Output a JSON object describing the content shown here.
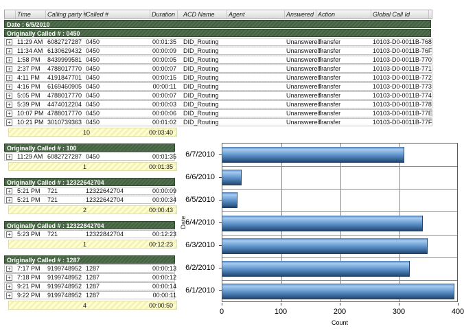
{
  "table": {
    "columns": [
      "",
      "Time",
      "Calling party #",
      "Called #",
      "Duration",
      "ACD Name",
      "Agent",
      "Answered",
      "Action",
      "Global Call Id"
    ],
    "date_header": "Date : 6/5/2010",
    "groups": [
      {
        "header": "Originally Called # : 0450",
        "full_width": true,
        "rows": [
          {
            "time": "11:29 AM",
            "calling": "6082727287",
            "called": "0450",
            "duration": "00:01:35",
            "acd": "DID_Routing",
            "agent": "",
            "answered": "Unanswered",
            "action": "Transfer",
            "global_id": "10103-D0-0011B-768"
          },
          {
            "time": "11:34 AM",
            "calling": "6130629432",
            "called": "0450",
            "duration": "00:00:09",
            "acd": "DID_Routing",
            "agent": "",
            "answered": "Unanswered",
            "action": "Transfer",
            "global_id": "10103-D0-0011B-76F"
          },
          {
            "time": "1:58 PM",
            "calling": "8439999581",
            "called": "0450",
            "duration": "00:00:05",
            "acd": "DID_Routing",
            "agent": "",
            "answered": "Unanswered",
            "action": "Transfer",
            "global_id": "10103-D0-0011B-770"
          },
          {
            "time": "2:37 PM",
            "calling": "4788017770",
            "called": "0450",
            "duration": "00:00:07",
            "acd": "DID_Routing",
            "agent": "",
            "answered": "Unanswered",
            "action": "Transfer",
            "global_id": "10103-D0-0011B-771"
          },
          {
            "time": "4:11 PM",
            "calling": "4191847701",
            "called": "0450",
            "duration": "00:00:15",
            "acd": "DID_Routing",
            "agent": "",
            "answered": "Unanswered",
            "action": "Transfer",
            "global_id": "10103-D0-0011B-772"
          },
          {
            "time": "4:16 PM",
            "calling": "6169460905",
            "called": "0450",
            "duration": "00:00:11",
            "acd": "DID_Routing",
            "agent": "",
            "answered": "Unanswered",
            "action": "Transfer",
            "global_id": "10103-D0-0011B-773"
          },
          {
            "time": "5:05 PM",
            "calling": "4788017770",
            "called": "0450",
            "duration": "00:00:07",
            "acd": "DID_Routing",
            "agent": "",
            "answered": "Unanswered",
            "action": "Transfer",
            "global_id": "10103-D0-0011B-774"
          },
          {
            "time": "5:39 PM",
            "calling": "4474012204",
            "called": "0450",
            "duration": "00:00:03",
            "acd": "DID_Routing",
            "agent": "",
            "answered": "Unanswered",
            "action": "Transfer",
            "global_id": "10103-D0-0011B-778"
          },
          {
            "time": "10:07 PM",
            "calling": "4788017770",
            "called": "0450",
            "duration": "00:00:06",
            "acd": "DID_Routing",
            "agent": "",
            "answered": "Unanswered",
            "action": "Transfer",
            "global_id": "10103-D0-0011B-77E"
          },
          {
            "time": "10:21 PM",
            "calling": "3010739363",
            "called": "0450",
            "duration": "00:01:02",
            "acd": "DID_Routing",
            "agent": "",
            "answered": "Unanswered",
            "action": "Transfer",
            "global_id": "10103-D0-0011B-77F"
          }
        ],
        "summary": {
          "count": "10",
          "duration": "00:03:40"
        }
      },
      {
        "header": "Originally Called # : 100",
        "full_width": false,
        "rows": [
          {
            "time": "11:29 AM",
            "calling": "6082727287",
            "called": "0450",
            "duration": "00:01:35"
          }
        ],
        "summary": {
          "count": "1",
          "duration": "00:01:35"
        }
      },
      {
        "header": "Originally Called # : 12322642704",
        "full_width": false,
        "rows": [
          {
            "time": "5:21 PM",
            "calling": "721",
            "called": "12322642704",
            "duration": "00:00:09"
          },
          {
            "time": "5:21 PM",
            "calling": "721",
            "called": "12322642704",
            "duration": "00:00:34"
          }
        ],
        "summary": {
          "count": "2",
          "duration": "00:00:43"
        }
      },
      {
        "header": "Originally Called # : 12322842704",
        "full_width": false,
        "rows": [
          {
            "time": "5:23 PM",
            "calling": "721",
            "called": "12322842704",
            "duration": "00:12:23"
          }
        ],
        "summary": {
          "count": "1",
          "duration": "00:12:23"
        }
      },
      {
        "header": "Originally Called # : 1287",
        "full_width": false,
        "rows": [
          {
            "time": "7:17 PM",
            "calling": "9199748952",
            "called": "1287",
            "duration": "00:00:13"
          },
          {
            "time": "7:18 PM",
            "calling": "9199748952",
            "called": "1287",
            "duration": "00:00:12"
          },
          {
            "time": "9:21 PM",
            "calling": "9199748952",
            "called": "1287",
            "duration": "00:00:14"
          },
          {
            "time": "9:22 PM",
            "calling": "9199748952",
            "called": "1287",
            "duration": "00:00:11"
          }
        ],
        "summary": {
          "count": "4",
          "duration": "00:00:50"
        }
      }
    ]
  },
  "chart_data": {
    "type": "bar",
    "orientation": "horizontal",
    "categories": [
      "6/7/2010",
      "6/6/2010",
      "6/5/2010",
      "6/4/2010",
      "6/3/2010",
      "6/2/2010",
      "6/1/2010"
    ],
    "values": [
      308,
      32,
      26,
      340,
      348,
      318,
      393
    ],
    "title": "",
    "xlabel": "Count",
    "ylabel": "Date",
    "xlim": [
      0,
      400
    ],
    "xticks": [
      0,
      100,
      200,
      300,
      400
    ],
    "grid": true,
    "legend": false,
    "bar_color": "#5b8fc9"
  },
  "colors": {
    "group_header_bg": "#4c6b47",
    "summary_bg": "#ffffcc",
    "bar_blue": "#5b8fc9",
    "grid_gray": "#8a8a8a"
  }
}
